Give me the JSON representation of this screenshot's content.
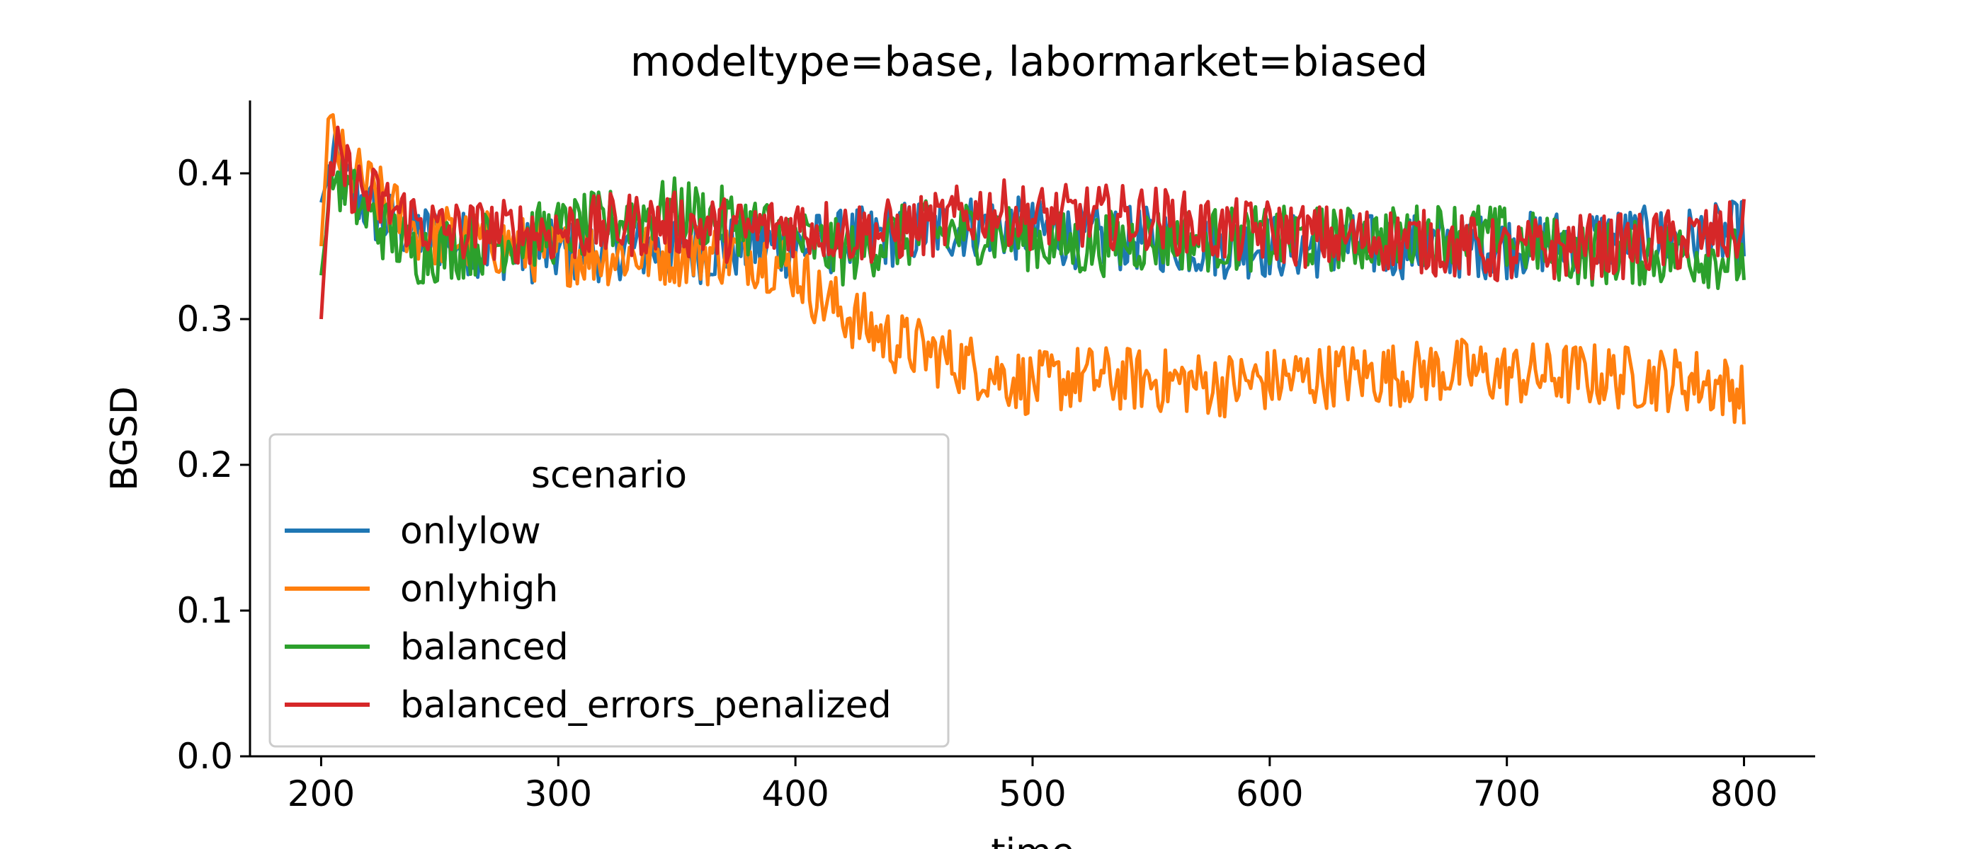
{
  "chart_data": {
    "type": "line",
    "title": "modeltype=base, labormarket=biased",
    "xlabel": "time",
    "ylabel": "BGSD",
    "xlim": [
      170,
      830
    ],
    "ylim": [
      0.0,
      0.45
    ],
    "xticks": [
      200,
      300,
      400,
      500,
      600,
      700,
      800
    ],
    "yticks": [
      0.0,
      0.1,
      0.2,
      0.3,
      0.4
    ],
    "xtick_labels": [
      "200",
      "300",
      "400",
      "500",
      "600",
      "700",
      "800"
    ],
    "ytick_labels": [
      "0.0",
      "0.1",
      "0.2",
      "0.3",
      "0.4"
    ],
    "grid": false,
    "legend": {
      "title": "scenario",
      "placement": "lower-left"
    },
    "series": [
      {
        "name": "onlylow",
        "color": "#1f77b4",
        "points": [
          [
            200,
            0.38
          ],
          [
            205,
            0.41
          ],
          [
            210,
            0.395
          ],
          [
            220,
            0.375
          ],
          [
            230,
            0.365
          ],
          [
            250,
            0.355
          ],
          [
            270,
            0.35
          ],
          [
            300,
            0.345
          ],
          [
            330,
            0.35
          ],
          [
            350,
            0.345
          ],
          [
            380,
            0.35
          ],
          [
            400,
            0.35
          ],
          [
            430,
            0.355
          ],
          [
            450,
            0.36
          ],
          [
            480,
            0.365
          ],
          [
            500,
            0.36
          ],
          [
            530,
            0.355
          ],
          [
            550,
            0.355
          ],
          [
            580,
            0.35
          ],
          [
            600,
            0.35
          ],
          [
            630,
            0.35
          ],
          [
            650,
            0.35
          ],
          [
            680,
            0.35
          ],
          [
            700,
            0.35
          ],
          [
            730,
            0.355
          ],
          [
            750,
            0.355
          ],
          [
            780,
            0.355
          ],
          [
            800,
            0.36
          ]
        ]
      },
      {
        "name": "onlyhigh",
        "color": "#ff7f0e",
        "points": [
          [
            200,
            0.35
          ],
          [
            203,
            0.43
          ],
          [
            210,
            0.405
          ],
          [
            220,
            0.39
          ],
          [
            240,
            0.36
          ],
          [
            260,
            0.355
          ],
          [
            280,
            0.35
          ],
          [
            300,
            0.345
          ],
          [
            330,
            0.345
          ],
          [
            350,
            0.345
          ],
          [
            380,
            0.345
          ],
          [
            400,
            0.335
          ],
          [
            410,
            0.315
          ],
          [
            420,
            0.305
          ],
          [
            440,
            0.285
          ],
          [
            460,
            0.275
          ],
          [
            480,
            0.265
          ],
          [
            500,
            0.255
          ],
          [
            520,
            0.26
          ],
          [
            550,
            0.258
          ],
          [
            580,
            0.255
          ],
          [
            600,
            0.258
          ],
          [
            630,
            0.262
          ],
          [
            650,
            0.262
          ],
          [
            680,
            0.265
          ],
          [
            700,
            0.262
          ],
          [
            730,
            0.262
          ],
          [
            750,
            0.26
          ],
          [
            780,
            0.258
          ],
          [
            800,
            0.25
          ]
        ]
      },
      {
        "name": "balanced",
        "color": "#2ca02c",
        "points": [
          [
            200,
            0.33
          ],
          [
            205,
            0.4
          ],
          [
            210,
            0.39
          ],
          [
            220,
            0.37
          ],
          [
            240,
            0.345
          ],
          [
            260,
            0.35
          ],
          [
            280,
            0.355
          ],
          [
            300,
            0.36
          ],
          [
            330,
            0.37
          ],
          [
            350,
            0.375
          ],
          [
            380,
            0.365
          ],
          [
            400,
            0.355
          ],
          [
            420,
            0.345
          ],
          [
            440,
            0.355
          ],
          [
            460,
            0.36
          ],
          [
            480,
            0.36
          ],
          [
            500,
            0.355
          ],
          [
            520,
            0.35
          ],
          [
            550,
            0.355
          ],
          [
            580,
            0.355
          ],
          [
            600,
            0.355
          ],
          [
            630,
            0.355
          ],
          [
            650,
            0.355
          ],
          [
            680,
            0.36
          ],
          [
            700,
            0.355
          ],
          [
            730,
            0.345
          ],
          [
            750,
            0.345
          ],
          [
            780,
            0.345
          ],
          [
            800,
            0.34
          ]
        ]
      },
      {
        "name": "balanced_errors_penalized",
        "color": "#d62728",
        "points": [
          [
            200,
            0.3
          ],
          [
            203,
            0.38
          ],
          [
            207,
            0.41
          ],
          [
            215,
            0.39
          ],
          [
            230,
            0.375
          ],
          [
            250,
            0.36
          ],
          [
            280,
            0.36
          ],
          [
            300,
            0.36
          ],
          [
            330,
            0.365
          ],
          [
            350,
            0.365
          ],
          [
            380,
            0.36
          ],
          [
            400,
            0.365
          ],
          [
            420,
            0.36
          ],
          [
            440,
            0.36
          ],
          [
            460,
            0.365
          ],
          [
            480,
            0.375
          ],
          [
            500,
            0.37
          ],
          [
            530,
            0.37
          ],
          [
            550,
            0.37
          ],
          [
            580,
            0.36
          ],
          [
            600,
            0.36
          ],
          [
            630,
            0.355
          ],
          [
            650,
            0.355
          ],
          [
            680,
            0.35
          ],
          [
            700,
            0.345
          ],
          [
            730,
            0.35
          ],
          [
            750,
            0.35
          ],
          [
            780,
            0.355
          ],
          [
            800,
            0.36
          ]
        ]
      }
    ]
  }
}
